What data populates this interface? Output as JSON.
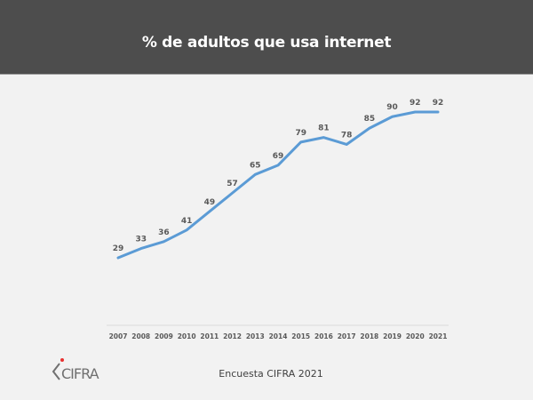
{
  "slide": {
    "title": "% de adultos que usa internet",
    "source": "Encuesta CIFRA  2021",
    "logo_text": "CIFRA"
  },
  "colors": {
    "header_bg": "#4d4d4d",
    "background": "#f2f2f2",
    "line": "#5b9bd5",
    "label": "#595959",
    "logo_dot": "#e8312f",
    "logo_text": "#707070"
  },
  "chart_data": {
    "type": "line",
    "title": "% de adultos que usa internet",
    "xlabel": "",
    "ylabel": "",
    "categories": [
      "2007",
      "2008",
      "2009",
      "2010",
      "2011",
      "2012",
      "2013",
      "2014",
      "2015",
      "2016",
      "2017",
      "2018",
      "2019",
      "2020",
      "2021"
    ],
    "series": [
      {
        "name": "% de adultos que usa internet",
        "values": [
          29,
          33,
          36,
          41,
          49,
          57,
          65,
          69,
          79,
          81,
          78,
          85,
          90,
          92,
          92
        ]
      }
    ],
    "ylim": [
      0,
      100
    ],
    "grid": false,
    "legend": "none",
    "data_labels": true
  }
}
